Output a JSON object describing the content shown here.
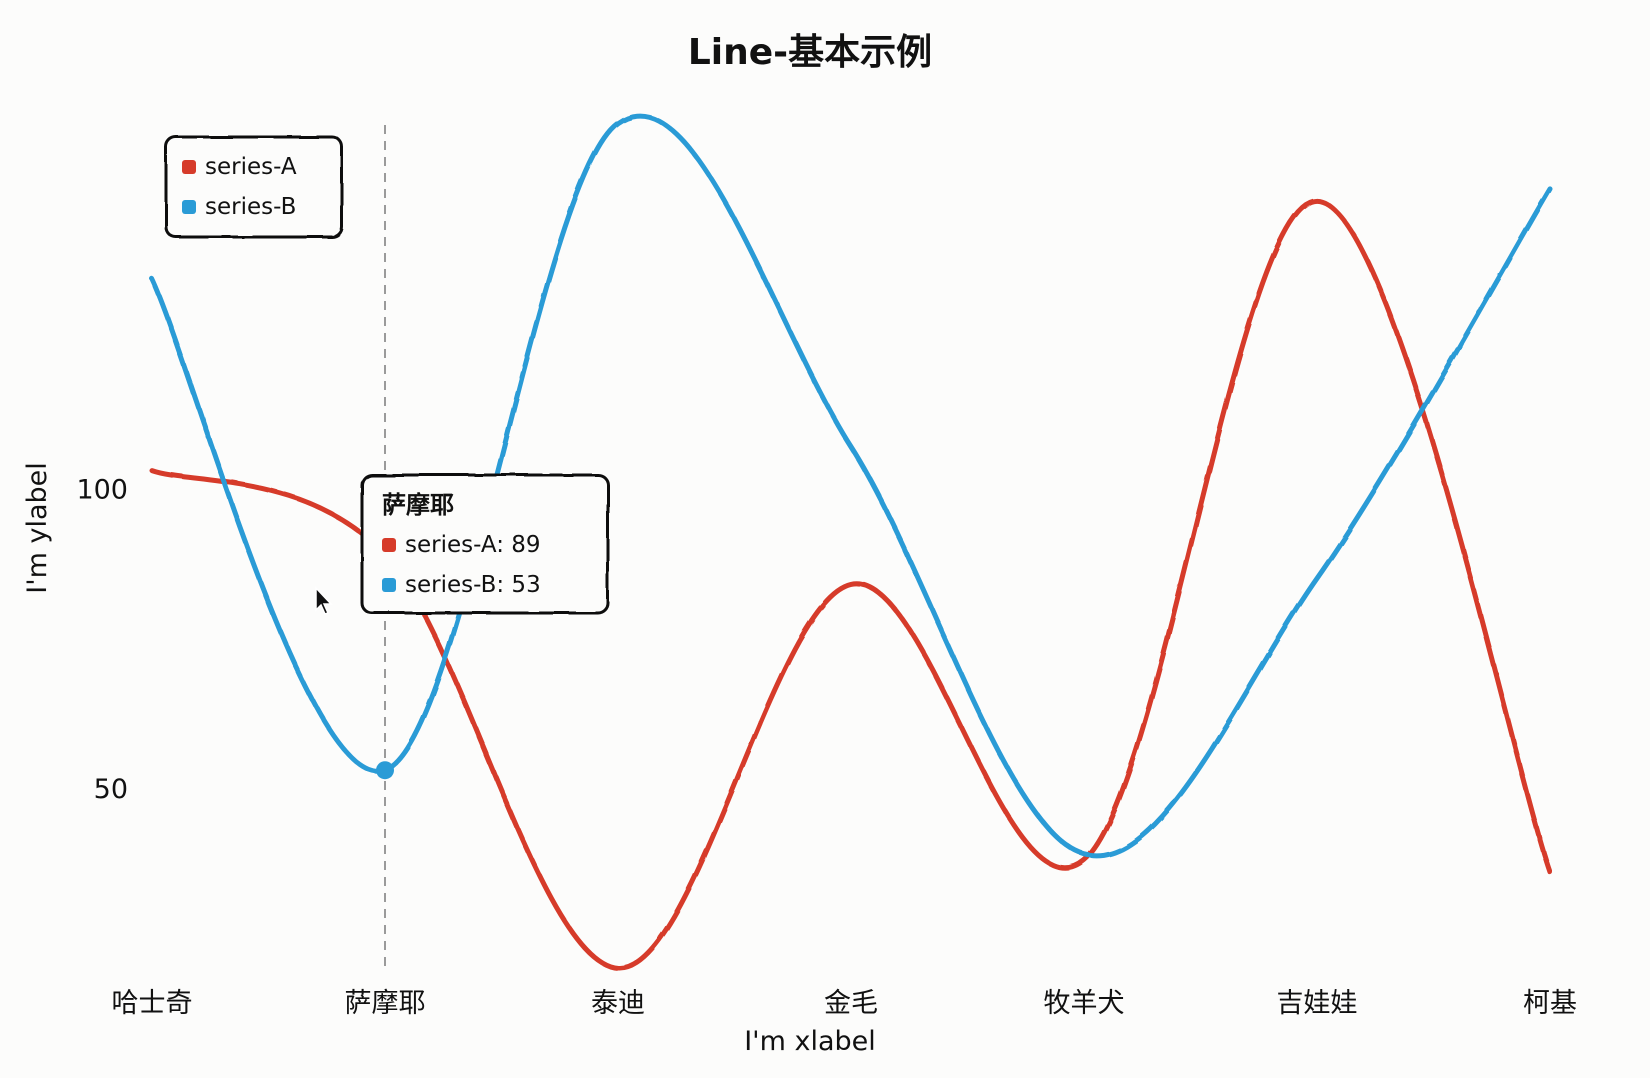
{
  "chart_data": {
    "type": "line",
    "title": "Line-基本示例",
    "xlabel": "I'm xlabel",
    "ylabel": "I'm ylabel",
    "categories": [
      "哈士奇",
      "萨摩耶",
      "泰迪",
      "金毛",
      "牧羊犬",
      "吉娃娃",
      "柯基"
    ],
    "series": [
      {
        "name": "series-A",
        "color": "#d63b2a",
        "values": [
          103,
          89,
          20,
          84,
          38,
          148,
          36
        ]
      },
      {
        "name": "series-B",
        "color": "#2a9bd6",
        "values": [
          135,
          53,
          161,
          107,
          39,
          85,
          150
        ]
      }
    ],
    "y_ticks": [
      50,
      100
    ],
    "ylim": [
      20,
      161
    ],
    "grid": false,
    "smooth": true,
    "legend_position": "top-left",
    "tooltip": {
      "title": "萨摩耶",
      "items": [
        {
          "label": "series-A: 89",
          "color": "#d63b2a"
        },
        {
          "label": "series-B: 53",
          "color": "#2a9bd6"
        }
      ]
    }
  }
}
